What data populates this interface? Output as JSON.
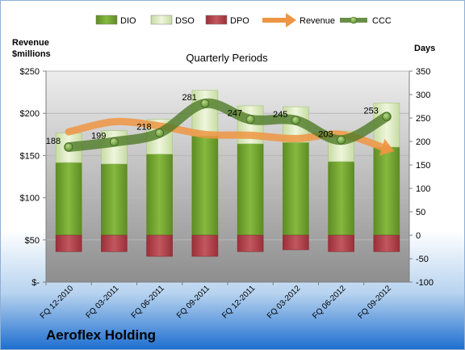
{
  "company": "Aeroflex Holding",
  "chart_data": {
    "type": "bar",
    "title": "Quarterly Periods",
    "stacked": true,
    "categories": [
      "FQ 12-2010",
      "FQ 03-2011",
      "FQ 06-2011",
      "FQ 09-2011",
      "FQ 12-2011",
      "FQ 03-2012",
      "FQ 06-2012",
      "FQ 09-2012"
    ],
    "left_axis": {
      "label_line1": "Revenue",
      "label_line2": "$millions",
      "range": [
        0,
        250
      ],
      "ticks": [
        "$-",
        "$50",
        "$100",
        "$150",
        "$200",
        "$250"
      ]
    },
    "right_axis": {
      "label": "Days",
      "range": [
        -100,
        350
      ],
      "ticks": [
        "-100",
        "-50",
        "0",
        "50",
        "100",
        "150",
        "200",
        "250",
        "300",
        "350"
      ]
    },
    "legend_position": "top",
    "legend": [
      {
        "name": "DIO",
        "kind": "box",
        "color": "#77a833"
      },
      {
        "name": "DSO",
        "kind": "box",
        "color": "#e3efcb"
      },
      {
        "name": "DPO",
        "kind": "box",
        "color": "#b5454e"
      },
      {
        "name": "Revenue",
        "kind": "arrow",
        "color": "#ef9543"
      },
      {
        "name": "CCC",
        "kind": "line-marker",
        "color": "#4f7a28"
      }
    ],
    "series": [
      {
        "name": "DIO",
        "axis": "right",
        "values": [
          155,
          152,
          173,
          212,
          195,
          198,
          157,
          188
        ]
      },
      {
        "name": "DSO",
        "axis": "right",
        "values": [
          63,
          71,
          74,
          97,
          81,
          76,
          65,
          94
        ]
      },
      {
        "name": "DPO",
        "axis": "right",
        "values": [
          -35,
          -35,
          -45,
          -45,
          -35,
          -31,
          -35,
          -35
        ]
      },
      {
        "name": "Revenue",
        "axis": "left",
        "values": [
          178,
          190,
          185,
          175,
          174,
          170,
          175,
          158
        ]
      },
      {
        "name": "CCC",
        "axis": "right",
        "values": [
          188,
          199,
          218,
          281,
          247,
          245,
          203,
          253
        ],
        "labels": [
          "188",
          "199",
          "218",
          "281",
          "247",
          "245",
          "203",
          "253"
        ]
      }
    ],
    "colors": {
      "dio": "#77a833",
      "dso": "#e3efcb",
      "dpo": "#b5454e",
      "revenue": "#ef9543",
      "ccc": "#4f7a28"
    }
  }
}
